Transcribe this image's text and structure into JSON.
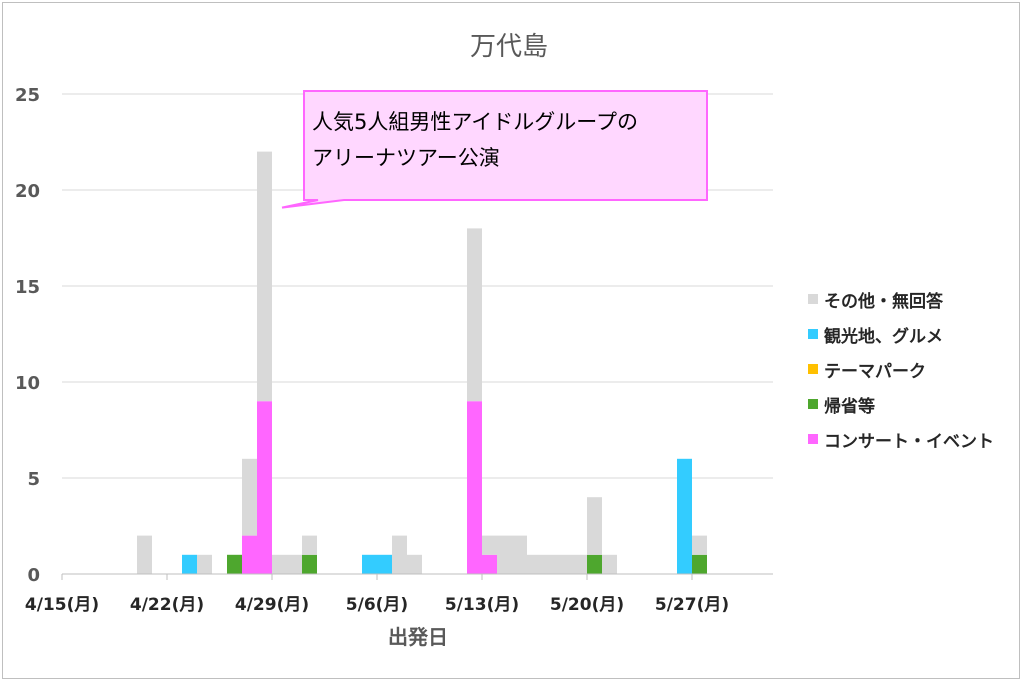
{
  "chart_data": {
    "type": "bar",
    "title": "万代島",
    "xlabel": "出発日",
    "ylabel": "",
    "ylim": [
      0,
      25
    ],
    "yticks": [
      0,
      5,
      10,
      15,
      20,
      25
    ],
    "stacked": true,
    "grid": true,
    "legend_position": "right",
    "x_tick_labels": [
      "4/15(月)",
      "4/22(月)",
      "4/29(月)",
      "5/6(月)",
      "5/13(月)",
      "5/20(月)",
      "5/27(月)"
    ],
    "categories": [
      "4/15",
      "4/16",
      "4/17",
      "4/18",
      "4/19",
      "4/20",
      "4/21",
      "4/22",
      "4/23",
      "4/24",
      "4/25",
      "4/26",
      "4/27",
      "4/28",
      "4/29",
      "4/30",
      "5/1",
      "5/2",
      "5/3",
      "5/4",
      "5/5",
      "5/6",
      "5/7",
      "5/8",
      "5/9",
      "5/10",
      "5/11",
      "5/12",
      "5/13",
      "5/14",
      "5/15",
      "5/16",
      "5/17",
      "5/18",
      "5/19",
      "5/20",
      "5/21",
      "5/22",
      "5/23",
      "5/24",
      "5/25",
      "5/26",
      "5/27",
      "5/28",
      "5/29",
      "5/30",
      "5/31",
      "6/1",
      "6/2"
    ],
    "series": [
      {
        "name": "コンサート・イベント",
        "color": "#ff66ff",
        "values": [
          0,
          0,
          0,
          0,
          0,
          0,
          0,
          0,
          0,
          0,
          0,
          0,
          2,
          9,
          0,
          0,
          0,
          0,
          0,
          0,
          0,
          0,
          0,
          0,
          0,
          0,
          0,
          9,
          1,
          0,
          0,
          0,
          0,
          0,
          0,
          0,
          0,
          0,
          0,
          0,
          0,
          0,
          0,
          0,
          0,
          0,
          0,
          0,
          0
        ]
      },
      {
        "name": "帰省等",
        "color": "#4ea72e",
        "values": [
          0,
          0,
          0,
          0,
          0,
          0,
          0,
          0,
          0,
          0,
          0,
          1,
          0,
          0,
          0,
          0,
          1,
          0,
          0,
          0,
          0,
          0,
          0,
          0,
          0,
          0,
          0,
          0,
          0,
          0,
          0,
          0,
          0,
          0,
          0,
          1,
          0,
          0,
          0,
          0,
          0,
          0,
          1,
          0,
          0,
          0,
          0,
          0,
          0
        ]
      },
      {
        "name": "テーマパーク",
        "color": "#ffc000",
        "values": [
          0,
          0,
          0,
          0,
          0,
          0,
          0,
          0,
          0,
          0,
          0,
          0,
          0,
          0,
          0,
          0,
          0,
          0,
          0,
          0,
          0,
          0,
          0,
          0,
          0,
          0,
          0,
          0,
          0,
          0,
          0,
          0,
          0,
          0,
          0,
          0,
          0,
          0,
          0,
          0,
          0,
          0,
          0,
          0,
          0,
          0,
          0,
          0,
          0
        ]
      },
      {
        "name": "観光地、グルメ",
        "color": "#33ccff",
        "values": [
          0,
          0,
          0,
          0,
          0,
          0,
          0,
          0,
          1,
          0,
          0,
          0,
          0,
          0,
          0,
          0,
          0,
          0,
          0,
          0,
          1,
          1,
          0,
          0,
          0,
          0,
          0,
          0,
          0,
          0,
          0,
          0,
          0,
          0,
          0,
          0,
          0,
          0,
          0,
          0,
          0,
          6,
          0,
          0,
          0,
          0,
          0,
          0,
          0
        ]
      },
      {
        "name": "その他・無回答",
        "color": "#d9d9d9",
        "values": [
          0,
          0,
          0,
          0,
          0,
          2,
          0,
          0,
          0,
          1,
          0,
          0,
          4,
          13,
          1,
          1,
          1,
          0,
          0,
          0,
          0,
          0,
          2,
          1,
          0,
          0,
          0,
          9,
          1,
          2,
          2,
          1,
          1,
          1,
          1,
          3,
          1,
          0,
          0,
          0,
          0,
          0,
          1,
          0,
          0,
          0,
          0,
          0,
          0
        ]
      }
    ],
    "legend_order": [
      "その他・無回答",
      "観光地、グルメ",
      "テーマパーク",
      "帰省等",
      "コンサート・イベント"
    ],
    "annotation": {
      "lines": [
        "人気5人組男性アイドルグループの",
        "アリーナツアー公演"
      ],
      "points_to_category": "4/28"
    }
  }
}
